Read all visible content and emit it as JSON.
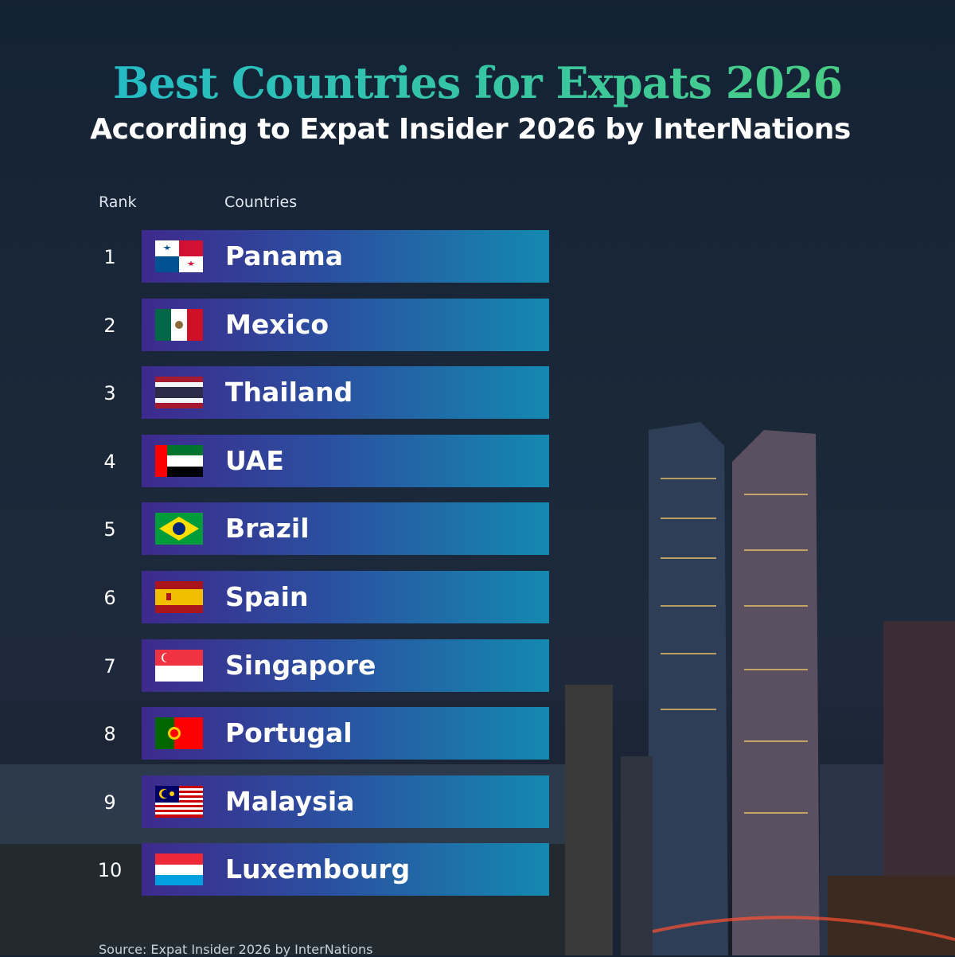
{
  "header": {
    "title": "Best Countries for Expats 2026",
    "subtitle": "According to Expat Insider 2026 by InterNations"
  },
  "table": {
    "columns": [
      "Rank",
      "Countries"
    ],
    "rows": [
      [
        "1",
        "Panama"
      ],
      [
        "2",
        "Mexico"
      ],
      [
        "3",
        "Thailand"
      ],
      [
        "4",
        "UAE"
      ],
      [
        "5",
        "Brazil"
      ],
      [
        "6",
        "Spain"
      ],
      [
        "7",
        "Singapore"
      ],
      [
        "8",
        "Portugal"
      ],
      [
        "9",
        "Malaysia"
      ],
      [
        "10",
        "Luxembourg"
      ]
    ]
  },
  "footer": {
    "source": "Source: Expat Insider 2026 by InterNations"
  }
}
